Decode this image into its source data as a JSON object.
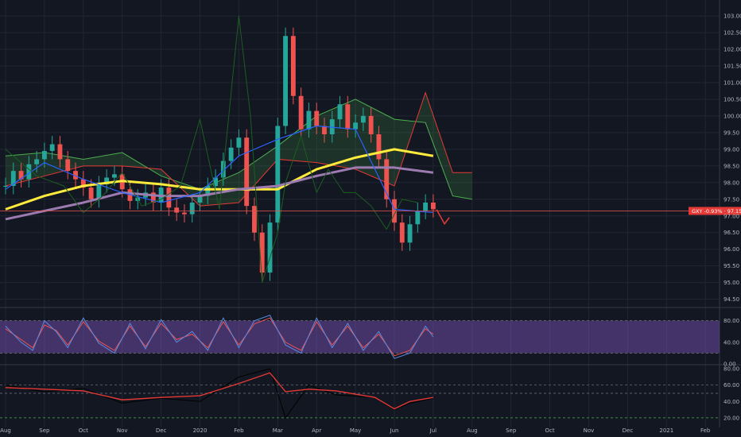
{
  "chart_data": {
    "type": "line",
    "price_panel": {
      "ylim": [
        94.3,
        103.05
      ],
      "y_ticks": [
        "103.00",
        "102.50",
        "102.00",
        "101.50",
        "101.00",
        "100.50",
        "100.00",
        "99.50",
        "99.00",
        "98.50",
        "98.00",
        "97.50",
        "97.00",
        "96.50",
        "96.00",
        "95.50",
        "95.00",
        "94.50"
      ],
      "y_tick_values": [
        103.0,
        102.5,
        102.0,
        101.5,
        101.0,
        100.5,
        100.0,
        99.5,
        99.0,
        98.5,
        98.0,
        97.5,
        97.0,
        96.5,
        96.0,
        95.5,
        95.0,
        94.5
      ],
      "price_tag": "GXY -0.93% · 97.15",
      "price_tag_value": 97.15,
      "candle_close_path": [
        [
          0,
          97.8
        ],
        [
          0.2,
          98.3
        ],
        [
          0.4,
          98.1
        ],
        [
          0.6,
          98.5
        ],
        [
          0.8,
          98.6
        ],
        [
          1.0,
          98.9
        ],
        [
          1.2,
          99.2
        ],
        [
          1.4,
          98.7
        ],
        [
          1.6,
          98.4
        ],
        [
          1.8,
          98.1
        ],
        [
          2.0,
          97.8
        ],
        [
          2.2,
          97.4
        ],
        [
          2.4,
          97.9
        ],
        [
          2.6,
          98.1
        ],
        [
          2.8,
          98.3
        ],
        [
          3.0,
          97.8
        ],
        [
          3.2,
          97.4
        ],
        [
          3.4,
          97.5
        ],
        [
          3.6,
          97.7
        ],
        [
          3.8,
          97.4
        ],
        [
          4.0,
          97.9
        ],
        [
          4.2,
          97.2
        ],
        [
          4.4,
          97.1
        ],
        [
          4.6,
          97.0
        ],
        [
          4.8,
          97.4
        ],
        [
          5.0,
          97.6
        ],
        [
          5.2,
          97.9
        ],
        [
          5.4,
          98.1
        ],
        [
          5.6,
          98.7
        ],
        [
          5.8,
          99.0
        ],
        [
          6.0,
          99.4
        ],
        [
          6.2,
          97.2
        ],
        [
          6.4,
          96.4
        ],
        [
          6.6,
          95.1
        ],
        [
          6.8,
          96.9
        ],
        [
          7.0,
          99.8
        ],
        [
          7.2,
          102.1
        ],
        [
          7.4,
          100.5
        ],
        [
          7.6,
          99.6
        ],
        [
          7.8,
          100.1
        ],
        [
          8.0,
          99.7
        ],
        [
          8.2,
          99.4
        ],
        [
          8.4,
          99.9
        ],
        [
          8.6,
          100.4
        ],
        [
          8.8,
          99.6
        ],
        [
          9.0,
          99.8
        ],
        [
          9.2,
          100.0
        ],
        [
          9.4,
          99.4
        ],
        [
          9.6,
          98.6
        ],
        [
          9.8,
          97.4
        ],
        [
          10.0,
          96.7
        ],
        [
          10.2,
          96.1
        ],
        [
          10.4,
          96.7
        ],
        [
          10.6,
          97.1
        ],
        [
          10.8,
          97.4
        ],
        [
          11.0,
          97.2
        ],
        [
          11.1,
          97.15
        ]
      ],
      "candles": [
        [
          0.0,
          97.9
        ],
        [
          0.2,
          98.35
        ],
        [
          0.4,
          98.1
        ],
        [
          0.6,
          98.55
        ],
        [
          0.8,
          98.7
        ],
        [
          1.0,
          98.95
        ],
        [
          1.2,
          99.15
        ],
        [
          1.4,
          98.7
        ],
        [
          1.6,
          98.35
        ],
        [
          1.8,
          98.1
        ],
        [
          2.0,
          97.85
        ],
        [
          2.2,
          97.5
        ],
        [
          2.4,
          97.95
        ],
        [
          2.6,
          98.15
        ],
        [
          2.8,
          98.25
        ],
        [
          3.0,
          97.8
        ],
        [
          3.2,
          97.45
        ],
        [
          3.4,
          97.55
        ],
        [
          3.6,
          97.7
        ],
        [
          3.8,
          97.4
        ],
        [
          4.0,
          97.85
        ],
        [
          4.2,
          97.25
        ],
        [
          4.4,
          97.1
        ],
        [
          4.6,
          97.05
        ],
        [
          4.8,
          97.4
        ],
        [
          5.0,
          97.6
        ],
        [
          5.2,
          97.9
        ],
        [
          5.4,
          98.15
        ],
        [
          5.6,
          98.65
        ],
        [
          5.8,
          99.05
        ],
        [
          6.0,
          99.35
        ],
        [
          6.2,
          97.3
        ],
        [
          6.4,
          96.5
        ],
        [
          6.6,
          95.3
        ],
        [
          6.8,
          96.8
        ],
        [
          7.0,
          99.7
        ],
        [
          7.2,
          102.4
        ],
        [
          7.4,
          100.6
        ],
        [
          7.6,
          99.6
        ],
        [
          7.8,
          100.15
        ],
        [
          8.0,
          99.7
        ],
        [
          8.2,
          99.45
        ],
        [
          8.4,
          99.9
        ],
        [
          8.6,
          100.35
        ],
        [
          8.8,
          99.6
        ],
        [
          9.0,
          99.8
        ],
        [
          9.2,
          100.0
        ],
        [
          9.4,
          99.45
        ],
        [
          9.6,
          98.7
        ],
        [
          9.8,
          97.5
        ],
        [
          10.0,
          96.8
        ],
        [
          10.2,
          96.2
        ],
        [
          10.4,
          96.75
        ],
        [
          10.6,
          97.15
        ],
        [
          10.8,
          97.4
        ],
        [
          11.0,
          97.2
        ]
      ],
      "series": [
        {
          "color": "#ffeb3b",
          "values": [
            [
              0,
              97.2
            ],
            [
              1,
              97.6
            ],
            [
              2,
              97.9
            ],
            [
              3,
              98.05
            ],
            [
              4,
              97.95
            ],
            [
              5,
              97.8
            ],
            [
              6,
              97.8
            ],
            [
              7,
              97.8
            ],
            [
              8,
              98.4
            ],
            [
              9,
              98.75
            ],
            [
              10,
              99.0
            ],
            [
              11,
              98.8
            ]
          ]
        },
        {
          "color": "#9c7bb0",
          "values": [
            [
              0,
              96.9
            ],
            [
              1,
              97.15
            ],
            [
              2,
              97.4
            ],
            [
              3,
              97.7
            ],
            [
              4,
              97.6
            ],
            [
              5,
              97.6
            ],
            [
              6,
              97.8
            ],
            [
              7,
              97.9
            ],
            [
              8,
              98.2
            ],
            [
              9,
              98.45
            ],
            [
              10,
              98.45
            ],
            [
              11,
              98.3
            ]
          ]
        },
        {
          "color": "#2962ff",
          "values": [
            [
              0,
              97.8
            ],
            [
              1,
              98.6
            ],
            [
              2,
              98.1
            ],
            [
              3,
              97.7
            ],
            [
              4,
              97.4
            ],
            [
              5,
              97.7
            ],
            [
              6,
              98.8
            ],
            [
              7,
              99.3
            ],
            [
              8,
              99.7
            ],
            [
              9,
              99.6
            ],
            [
              10,
              97.2
            ],
            [
              11,
              97.1
            ]
          ]
        },
        {
          "color": "#1b5e20",
          "values": [
            [
              0,
              99.0
            ],
            [
              0.8,
              98.2
            ],
            [
              1.5,
              97.9
            ],
            [
              2.0,
              97.1
            ],
            [
              2.5,
              97.6
            ],
            [
              3.0,
              98.3
            ],
            [
              3.5,
              97.3
            ],
            [
              4.0,
              97.5
            ],
            [
              4.5,
              97.9
            ],
            [
              5.0,
              99.9
            ],
            [
              5.5,
              97.2
            ],
            [
              6.0,
              103.0
            ],
            [
              6.3,
              100.0
            ],
            [
              6.6,
              95.0
            ],
            [
              7.0,
              96.5
            ],
            [
              7.2,
              98.0
            ],
            [
              7.6,
              99.4
            ],
            [
              8.0,
              97.7
            ],
            [
              8.3,
              98.4
            ],
            [
              8.7,
              97.7
            ],
            [
              9.0,
              97.7
            ],
            [
              9.4,
              97.3
            ],
            [
              9.8,
              96.6
            ],
            [
              10.2,
              97.5
            ],
            [
              10.6,
              97.4
            ]
          ]
        }
      ],
      "cloud": {
        "green": [
          [
            0,
            98.8
          ],
          [
            1,
            98.9
          ],
          [
            2,
            98.7
          ],
          [
            3,
            98.9
          ],
          [
            4,
            98.2
          ],
          [
            5,
            97.8
          ],
          [
            6,
            98.3
          ],
          [
            7,
            99.1
          ],
          [
            8,
            100.0
          ],
          [
            9,
            100.5
          ],
          [
            10,
            99.9
          ],
          [
            10.8,
            99.8
          ],
          [
            11.5,
            97.6
          ],
          [
            12,
            97.5
          ]
        ],
        "red": [
          [
            0,
            97.9
          ],
          [
            1,
            98.2
          ],
          [
            2,
            98.5
          ],
          [
            3,
            98.5
          ],
          [
            4,
            98.4
          ],
          [
            5,
            97.3
          ],
          [
            6,
            97.4
          ],
          [
            7,
            98.7
          ],
          [
            8,
            98.6
          ],
          [
            9,
            98.4
          ],
          [
            10,
            97.9
          ],
          [
            10.8,
            100.7
          ],
          [
            11.5,
            98.3
          ],
          [
            12,
            98.3
          ]
        ]
      }
    },
    "stoch_panel": {
      "y_ticks": [
        "80.00",
        "40.00",
        "0.00"
      ],
      "y_tick_values": [
        80,
        40,
        0
      ],
      "ylim": [
        0,
        100
      ],
      "band": [
        20,
        80
      ],
      "k": [
        [
          0,
          70
        ],
        [
          0.4,
          40
        ],
        [
          0.7,
          25
        ],
        [
          1.0,
          80
        ],
        [
          1.3,
          60
        ],
        [
          1.6,
          30
        ],
        [
          2.0,
          85
        ],
        [
          2.4,
          38
        ],
        [
          2.8,
          20
        ],
        [
          3.2,
          75
        ],
        [
          3.6,
          28
        ],
        [
          4.0,
          82
        ],
        [
          4.4,
          40
        ],
        [
          4.8,
          60
        ],
        [
          5.2,
          25
        ],
        [
          5.6,
          85
        ],
        [
          6.0,
          30
        ],
        [
          6.4,
          80
        ],
        [
          6.8,
          90
        ],
        [
          7.2,
          35
        ],
        [
          7.6,
          20
        ],
        [
          8.0,
          85
        ],
        [
          8.4,
          30
        ],
        [
          8.8,
          75
        ],
        [
          9.2,
          25
        ],
        [
          9.6,
          60
        ],
        [
          10.0,
          10
        ],
        [
          10.4,
          20
        ],
        [
          10.8,
          70
        ],
        [
          11.0,
          50
        ]
      ],
      "d": [
        [
          0,
          65
        ],
        [
          0.4,
          45
        ],
        [
          0.7,
          30
        ],
        [
          1.0,
          72
        ],
        [
          1.3,
          62
        ],
        [
          1.6,
          35
        ],
        [
          2.0,
          78
        ],
        [
          2.4,
          42
        ],
        [
          2.8,
          25
        ],
        [
          3.2,
          70
        ],
        [
          3.6,
          32
        ],
        [
          4.0,
          75
        ],
        [
          4.4,
          45
        ],
        [
          4.8,
          55
        ],
        [
          5.2,
          30
        ],
        [
          5.6,
          78
        ],
        [
          6.0,
          35
        ],
        [
          6.4,
          74
        ],
        [
          6.8,
          85
        ],
        [
          7.2,
          40
        ],
        [
          7.6,
          25
        ],
        [
          8.0,
          78
        ],
        [
          8.4,
          35
        ],
        [
          8.8,
          70
        ],
        [
          9.2,
          30
        ],
        [
          9.6,
          55
        ],
        [
          10.0,
          15
        ],
        [
          10.4,
          25
        ],
        [
          10.8,
          65
        ],
        [
          11.0,
          55
        ]
      ]
    },
    "macd_panel": {
      "y_ticks": [
        "80.00",
        "60.00",
        "40.00",
        "20.00"
      ],
      "y_tick_values": [
        80,
        60,
        40,
        20
      ],
      "ylim": [
        16,
        84
      ],
      "dashed_levels": [
        60,
        50
      ],
      "red": [
        [
          0,
          57
        ],
        [
          1,
          55
        ],
        [
          2,
          53
        ],
        [
          3,
          42
        ],
        [
          4,
          45
        ],
        [
          5,
          47
        ],
        [
          6,
          62
        ],
        [
          6.8,
          75
        ],
        [
          7.2,
          52
        ],
        [
          7.8,
          55
        ],
        [
          8.5,
          53
        ],
        [
          9.5,
          45
        ],
        [
          10.0,
          31
        ],
        [
          10.4,
          40
        ],
        [
          11,
          45
        ]
      ],
      "black": [
        [
          0,
          60
        ],
        [
          1,
          52
        ],
        [
          2,
          56
        ],
        [
          3,
          38
        ],
        [
          4,
          44
        ],
        [
          5,
          40
        ],
        [
          6,
          70
        ],
        [
          6.8,
          80
        ],
        [
          7.2,
          20
        ],
        [
          7.8,
          60
        ],
        [
          8.5,
          48
        ],
        [
          9.5,
          45
        ],
        [
          10.0,
          30
        ],
        [
          10.4,
          38
        ],
        [
          11,
          44
        ]
      ]
    },
    "x_ticks": [
      "Aug",
      "Sep",
      "Oct",
      "Nov",
      "Dec",
      "2020",
      "Feb",
      "Mar",
      "Apr",
      "May",
      "Jun",
      "Jul",
      "Aug",
      "Sep",
      "Oct",
      "Nov",
      "Dec",
      "2021",
      "Feb"
    ],
    "x_tick_index": [
      0,
      1,
      2,
      3,
      4,
      5,
      6,
      7,
      8,
      9,
      10,
      11,
      12,
      13,
      14,
      15,
      16,
      17,
      18
    ]
  }
}
